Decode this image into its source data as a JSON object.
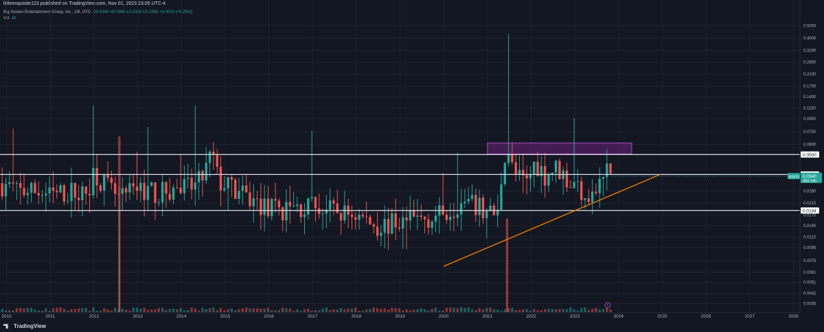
{
  "header": {
    "published": "littleexquisite123 published on TradingView.com, Nov 01, 2023 23:05 UTC-4"
  },
  "legend": {
    "symbol": "Big Screen Entertainment Group, Inc., 1M, OTC",
    "ohlc": "O0.0340 H0.0340 L0.0340 C0.0340 +0.0020 (+6.25%)",
    "vol_label": "Vol",
    "vol_value": "1K"
  },
  "footer": {
    "brand": "TradingView"
  },
  "icons": {
    "chart-settings": "settings-icon",
    "event-marker": "lightning-icon"
  },
  "colors": {
    "background": "#131722",
    "up": "#26a69a",
    "down": "#ef5350",
    "trendline": "#f57c00",
    "zone": "#9c27b0",
    "level": "#e0e3eb"
  },
  "chart_data": {
    "type": "candlestick",
    "scale": "log",
    "x_ticks": [
      "2010",
      "2011",
      "2012",
      "2013",
      "2014",
      "2015",
      "2016",
      "2017",
      "2018",
      "2019",
      "2020",
      "2021",
      "2022",
      "2023",
      "2024",
      "2025",
      "2026",
      "2027",
      "2028"
    ],
    "y_ticks": [
      "0.5000",
      "0.4000",
      "0.3200",
      "0.2600",
      "0.2100",
      "0.1700",
      "0.1400",
      "0.1150",
      "0.0950",
      "0.0750",
      "0.0600",
      "0.0500",
      "0.0350",
      "0.0260",
      "0.0210",
      "0.0170",
      "0.0140",
      "0.0115",
      "0.0095",
      "0.0075",
      "0.0061",
      "0.0051",
      "0.0042",
      "0.0035"
    ],
    "ylim": [
      0.003,
      0.56
    ],
    "horizontal_levels": [
      {
        "value": 0.05,
        "label": "0.0500"
      },
      {
        "value": 0.035,
        "label": "0.0350"
      },
      {
        "value": 0.0184,
        "label": "0.0184"
      }
    ],
    "last_price": {
      "symbol": "BSEG",
      "value": 0.034,
      "label": "0.0340",
      "countdown": "28d 19h"
    },
    "resistance_zone": {
      "x": [
        2021.0,
        2024.3
      ],
      "y": [
        0.0505,
        0.0615
      ]
    },
    "trendline": {
      "x": [
        2020.0,
        2024.95
      ],
      "y": [
        0.0068,
        0.035
      ]
    },
    "volume_spikes": [
      {
        "x": 2012.58,
        "height": 0.6
      },
      {
        "x": 2021.45,
        "height": 0.32
      }
    ],
    "candles_note": "approximate monthly path read from chart",
    "path": [
      [
        2009.9,
        0.03
      ],
      [
        2010.3,
        0.026
      ],
      [
        2010.7,
        0.026
      ],
      [
        2011.0,
        0.024
      ],
      [
        2011.5,
        0.026
      ],
      [
        2011.8,
        0.024
      ],
      [
        2012.0,
        0.038
      ],
      [
        2012.3,
        0.028
      ],
      [
        2012.6,
        0.022
      ],
      [
        2012.8,
        0.025
      ],
      [
        2013.0,
        0.028
      ],
      [
        2013.5,
        0.025
      ],
      [
        2013.9,
        0.027
      ],
      [
        2014.3,
        0.028
      ],
      [
        2014.5,
        0.034
      ],
      [
        2014.7,
        0.052
      ],
      [
        2014.85,
        0.031
      ],
      [
        2015.1,
        0.028
      ],
      [
        2015.5,
        0.023
      ],
      [
        2016.0,
        0.019
      ],
      [
        2016.5,
        0.019
      ],
      [
        2017.0,
        0.02
      ],
      [
        2017.5,
        0.018
      ],
      [
        2018.0,
        0.017
      ],
      [
        2018.5,
        0.014
      ],
      [
        2019.0,
        0.015
      ],
      [
        2019.5,
        0.016
      ],
      [
        2019.9,
        0.017
      ],
      [
        2020.3,
        0.021
      ],
      [
        2020.7,
        0.02
      ],
      [
        2021.0,
        0.018
      ],
      [
        2021.25,
        0.017
      ],
      [
        2021.35,
        0.045
      ],
      [
        2021.45,
        0.06
      ],
      [
        2021.6,
        0.035
      ],
      [
        2021.9,
        0.03
      ],
      [
        2022.1,
        0.045
      ],
      [
        2022.3,
        0.035
      ],
      [
        2022.6,
        0.04
      ],
      [
        2022.9,
        0.03
      ],
      [
        2023.1,
        0.028
      ],
      [
        2023.4,
        0.024
      ],
      [
        2023.6,
        0.03
      ],
      [
        2023.75,
        0.04
      ],
      [
        2023.83,
        0.034
      ]
    ]
  }
}
